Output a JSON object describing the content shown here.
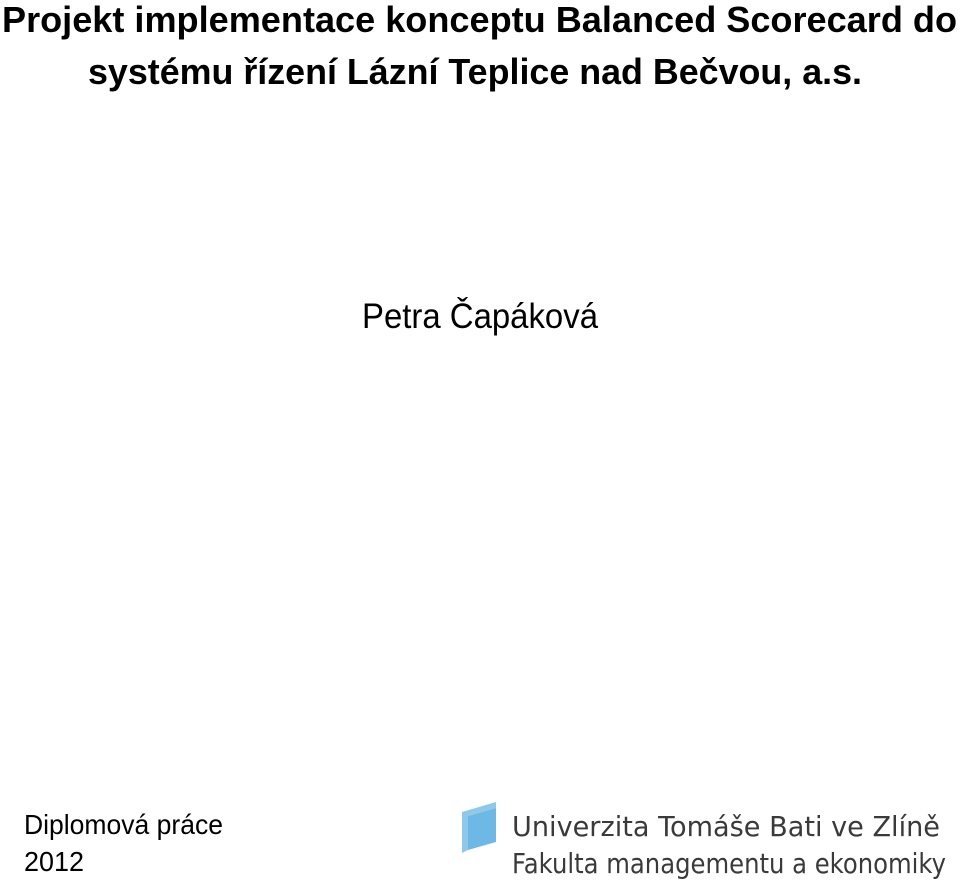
{
  "title": {
    "lines": [
      "Projekt implementace konceptu Balanced Scorecard do",
      "systému řízení Lázní Teplice nad Bečvou, a.s."
    ]
  },
  "author": "Petra Čapáková",
  "thesis_type": "Diplomová práce",
  "year": "2012",
  "logo": {
    "university": "Univerzita Tomáše Bati ve Zlíně",
    "faculty": "Fakulta managementu a ekonomiky"
  }
}
